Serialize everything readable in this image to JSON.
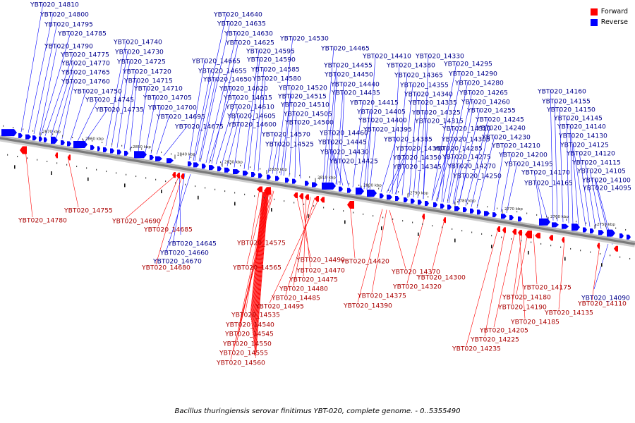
{
  "caption": "Bacillus thuringiensis serovar finitimus YBT-020, complete genome. - 0..5355490",
  "legend": [
    {
      "label": "Forward",
      "color": "#ff0000"
    },
    {
      "label": "Reverse",
      "color": "#0000ff"
    }
  ],
  "colors": {
    "forward": "#ff0000",
    "reverse": "#0000ff",
    "backbone": "#9a9a9a"
  },
  "ticks": [
    {
      "label": "2870 kbp"
    },
    {
      "label": "2860 kbp"
    },
    {
      "label": "2850 kbp"
    },
    {
      "label": "2840 kbp"
    },
    {
      "label": "2830 kbp"
    },
    {
      "label": "2820 kbp"
    },
    {
      "label": "2810 kbp"
    },
    {
      "label": "2800 kbp"
    },
    {
      "label": "2790 kbp"
    },
    {
      "label": "2780 kbp"
    },
    {
      "label": "2770 kbp"
    },
    {
      "label": "2760 kbp"
    },
    {
      "label": "2750 kbp"
    }
  ],
  "reverse_labels": [
    "YBT020_14810",
    "YBT020_14800",
    "YBT020_14795",
    "YBT020_14785",
    "YBT020_14790",
    "YBT020_14775",
    "YBT020_14770",
    "YBT020_14765",
    "YBT020_14760",
    "YBT020_14750",
    "YBT020_14745",
    "YBT020_14735",
    "YBT020_14740",
    "YBT020_14730",
    "YBT020_14725",
    "YBT020_14720",
    "YBT020_14715",
    "YBT020_14710",
    "YBT020_14705",
    "YBT020_14700",
    "YBT020_14695",
    "YBT020_14675",
    "YBT020_14640",
    "YBT020_14635",
    "YBT020_14630",
    "YBT020_14625",
    "YBT020_14665",
    "YBT020_14655",
    "YBT020_14650",
    "YBT020_14620",
    "YBT020_14615",
    "YBT020_14610",
    "YBT020_14605",
    "YBT020_14600",
    "YBT020_14595",
    "YBT020_14590",
    "YBT020_14585",
    "YBT020_14580",
    "YBT020_14530",
    "YBT020_14520",
    "YBT020_14515",
    "YBT020_14510",
    "YBT020_14505",
    "YBT020_14500",
    "YBT020_14570",
    "YBT020_14525",
    "YBT020_14465",
    "YBT020_14455",
    "YBT020_14450",
    "YBT020_14440",
    "YBT020_14435",
    "YBT020_14415",
    "YBT020_14405",
    "YBT020_14400",
    "YBT020_14395",
    "YBT020_14460",
    "YBT020_14445",
    "YBT020_14430",
    "YBT020_14425",
    "YBT020_14410",
    "YBT020_14380",
    "YBT020_14365",
    "YBT020_14355",
    "YBT020_14340",
    "YBT020_14335",
    "YBT020_14325",
    "YBT020_14315",
    "YBT020_14385",
    "YBT020_14360",
    "YBT020_14350",
    "YBT020_14345",
    "YBT020_14330",
    "YBT020_14295",
    "YBT020_14290",
    "YBT020_14280",
    "YBT020_14265",
    "YBT020_14260",
    "YBT020_14255",
    "YBT020_14245",
    "YBT020_14240",
    "YBT020_14230",
    "YBT020_14310",
    "YBT020_14305",
    "YBT020_14285",
    "YBT020_14275",
    "YBT020_14270",
    "YBT020_14250",
    "YBT020_14210",
    "YBT020_14200",
    "YBT020_14195",
    "YBT020_14170",
    "YBT020_14165",
    "YBT020_14160",
    "YBT020_14155",
    "YBT020_14150",
    "YBT020_14145",
    "YBT020_14140",
    "YBT020_14130",
    "YBT020_14125",
    "YBT020_14120",
    "YBT020_14115",
    "YBT020_14105",
    "YBT020_14100",
    "YBT020_14095",
    "YBT020_14645",
    "YBT020_14660",
    "YBT020_14670",
    "YBT020_14090"
  ],
  "forward_labels": [
    "YBT020_14755",
    "YBT020_14780",
    "YBT020_14690",
    "YBT020_14685",
    "YBT020_14680",
    "YBT020_14575",
    "YBT020_14565",
    "YBT020_14490",
    "YBT020_14470",
    "YBT020_14475",
    "YBT020_14480",
    "YBT020_14485",
    "YBT020_14495",
    "YBT020_14535",
    "YBT020_14540",
    "YBT020_14545",
    "YBT020_14550",
    "YBT020_14555",
    "YBT020_14560",
    "YBT020_14420",
    "YBT020_14370",
    "YBT020_14375",
    "YBT020_14390",
    "YBT020_14320",
    "YBT020_14300",
    "YBT020_14175",
    "YBT020_14180",
    "YBT020_14190",
    "YBT020_14185",
    "YBT020_14205",
    "YBT020_14225",
    "YBT020_14235",
    "YBT020_14135",
    "YBT020_14110"
  ]
}
